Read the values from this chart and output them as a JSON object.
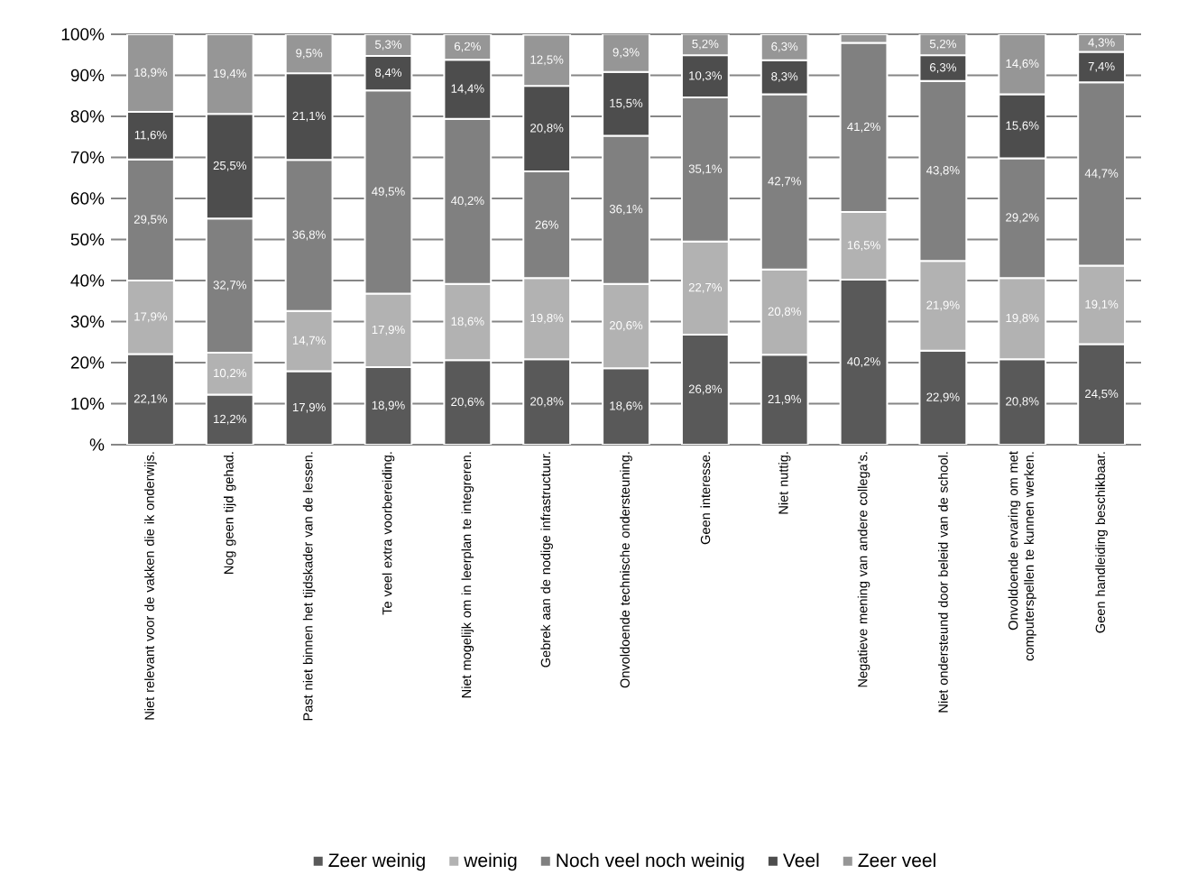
{
  "chart_data": {
    "type": "bar",
    "stacked": true,
    "categories": [
      "Niet relevant voor de vakken die ik onderwijs.",
      "Nog geen tijd gehad.",
      "Past  niet binnen het tijdskader van de lessen.",
      "Te veel extra voorbereiding.",
      "Niet mogelijk om in leerplan te integreren.",
      "Gebrek aan de nodige infrastructuur.",
      "Onvoldoende technische ondersteuning.",
      "Geen interesse.",
      "Niet nuttig.",
      "Negatieve mening van andere collega's.",
      "Niet ondersteund door beleid van de school.",
      "Onvoldoende ervaring om met computerspellen te kunnen werken.",
      "Geen handleiding beschikbaar."
    ],
    "series": [
      {
        "name": "Zeer weinig",
        "color": "#595959",
        "values": [
          22.1,
          12.2,
          17.9,
          18.9,
          20.6,
          20.8,
          18.6,
          26.8,
          21.9,
          40.2,
          22.9,
          20.8,
          24.5
        ],
        "value_labels": [
          "22,1%",
          "12,2%",
          "17,9%",
          "18,9%",
          "20,6%",
          "20,8%",
          "18,6%",
          "26,8%",
          "21,9%",
          "40,2%",
          "22,9%",
          "20,8%",
          "24,5%"
        ]
      },
      {
        "name": "weinig",
        "color": "#b2b2b2",
        "values": [
          17.9,
          10.2,
          14.7,
          17.9,
          18.6,
          19.8,
          20.6,
          22.7,
          20.8,
          16.5,
          21.9,
          19.8,
          19.1
        ],
        "value_labels": [
          "17,9%",
          "10,2%",
          "14,7%",
          "17,9%",
          "18,6%",
          "19,8%",
          "20,6%",
          "22,7%",
          "20,8%",
          "16,5%",
          "21,9%",
          "19,8%",
          "19,1%"
        ]
      },
      {
        "name": "Noch veel noch weinig",
        "color": "#808080",
        "values": [
          29.5,
          32.7,
          36.8,
          49.5,
          40.2,
          26,
          36.1,
          35.1,
          42.7,
          41.2,
          43.8,
          29.2,
          44.7
        ],
        "value_labels": [
          "29,5%",
          "32,7%",
          "36,8%",
          "49,5%",
          "40,2%",
          "26%",
          "36,1%",
          "35,1%",
          "42,7%",
          "41,2%",
          "43,8%",
          "29,2%",
          "44,7%"
        ]
      },
      {
        "name": "Veel",
        "color": "#4d4d4d",
        "values": [
          11.6,
          25.5,
          21.1,
          8.4,
          14.4,
          20.8,
          15.5,
          10.3,
          8.3,
          null,
          6.3,
          15.6,
          7.4
        ],
        "value_labels": [
          "11,6%",
          "25,5%",
          "21,1%",
          "8,4%",
          "14,4%",
          "20,8%",
          "15,5%",
          "10,3%",
          "8,3%",
          null,
          "6,3%",
          "15,6%",
          "7,4%"
        ]
      },
      {
        "name": "Zeer veel",
        "color": "#969696",
        "values": [
          18.9,
          19.4,
          9.5,
          5.3,
          6.2,
          12.5,
          9.3,
          5.2,
          6.3,
          2.1,
          5.2,
          14.6,
          4.3
        ],
        "value_labels": [
          "18,9%",
          "19,4%",
          "9,5%",
          "5,3%",
          "6,2%",
          "12,5%",
          "9,3%",
          "5,2%",
          "6,3%",
          null,
          "5,2%",
          "14,6%",
          "4,3%"
        ]
      }
    ],
    "ylim": [
      0,
      100
    ],
    "yticks": [
      {
        "value": 0,
        "label": "%"
      },
      {
        "value": 10,
        "label": "10%"
      },
      {
        "value": 20,
        "label": "20%"
      },
      {
        "value": 30,
        "label": "30%"
      },
      {
        "value": 40,
        "label": "40%"
      },
      {
        "value": 50,
        "label": "50%"
      },
      {
        "value": 60,
        "label": "60%"
      },
      {
        "value": 70,
        "label": "70%"
      },
      {
        "value": 80,
        "label": "80%"
      },
      {
        "value": 90,
        "label": "90%"
      },
      {
        "value": 100,
        "label": "100%"
      }
    ],
    "grid": "y",
    "legend": "bottom"
  }
}
